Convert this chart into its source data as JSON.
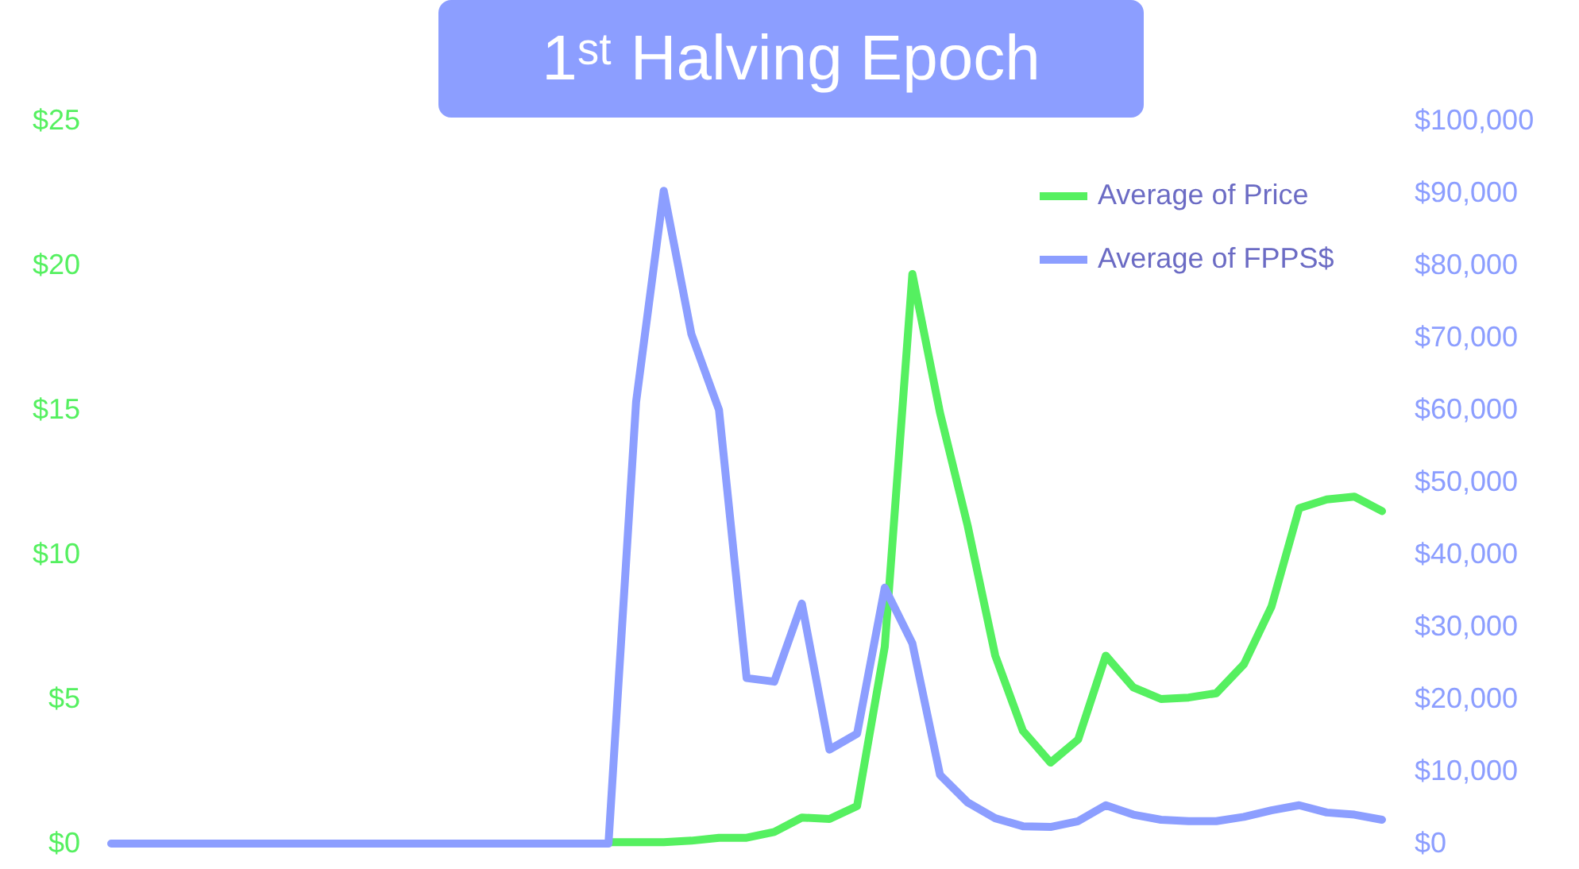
{
  "chart_data": {
    "type": "line",
    "title": "1ˢᵗ Halving Epoch",
    "categories": [
      null,
      null,
      null,
      null,
      null,
      null,
      null,
      null,
      null,
      null,
      null,
      null,
      null,
      null,
      null,
      null,
      null,
      null,
      null,
      null,
      null,
      null,
      null,
      null,
      null,
      null,
      null,
      null,
      null,
      null,
      null,
      null,
      null,
      null,
      null,
      null,
      null,
      null,
      null,
      null,
      null,
      null,
      null,
      null,
      null,
      null,
      null
    ],
    "series": [
      {
        "name": "Average of Price",
        "color": "#55f060",
        "values": [
          null,
          null,
          null,
          null,
          null,
          null,
          null,
          null,
          null,
          null,
          null,
          null,
          null,
          null,
          null,
          null,
          null,
          null,
          0.05,
          0.05,
          0.05,
          0.1,
          0.2,
          0.2,
          0.4,
          0.9,
          0.85,
          1.3,
          6.8,
          19.7,
          14.9,
          11.0,
          6.5,
          3.9,
          2.8,
          3.6,
          6.5,
          5.4,
          5.0,
          5.05,
          5.2,
          6.2,
          8.2,
          11.6,
          11.9,
          12.0,
          11.5
        ]
      },
      {
        "name": "Average of FPPS$",
        "color": "#8c9eff",
        "axis": "y2",
        "values": [
          0,
          0,
          0,
          0,
          0,
          0,
          0,
          0,
          0,
          0,
          0,
          0,
          0,
          0,
          0,
          0,
          0,
          0,
          0,
          61100,
          90300,
          70500,
          60000,
          22900,
          22400,
          33200,
          13000,
          15200,
          35400,
          27700,
          9500,
          5700,
          3500,
          2400,
          2300,
          3100,
          5300,
          4000,
          3300,
          3100,
          3100,
          3700,
          4600,
          5300,
          4300,
          4000,
          3300
        ]
      }
    ],
    "ylim": [
      0,
      25
    ],
    "yticks": [
      {
        "value": 0,
        "label": "$0"
      },
      {
        "value": 5,
        "label": "$5"
      },
      {
        "value": 10,
        "label": "$10"
      },
      {
        "value": 15,
        "label": "$15"
      },
      {
        "value": 20,
        "label": "$20"
      },
      {
        "value": 25,
        "label": "$25"
      }
    ],
    "y2lim": [
      0,
      100000
    ],
    "y2ticks": [
      {
        "value": 0,
        "label": "$0"
      },
      {
        "value": 10000,
        "label": "$10,000"
      },
      {
        "value": 20000,
        "label": "$20,000"
      },
      {
        "value": 30000,
        "label": "$30,000"
      },
      {
        "value": 40000,
        "label": "$40,000"
      },
      {
        "value": 50000,
        "label": "$50,000"
      },
      {
        "value": 60000,
        "label": "$60,000"
      },
      {
        "value": 70000,
        "label": "$70,000"
      },
      {
        "value": 80000,
        "label": "$80,000"
      },
      {
        "value": 90000,
        "label": "$90,000"
      },
      {
        "value": 100000,
        "label": "$100,000"
      }
    ],
    "grid": false,
    "legend": "top right",
    "marker": "none",
    "line_style": "solid"
  }
}
